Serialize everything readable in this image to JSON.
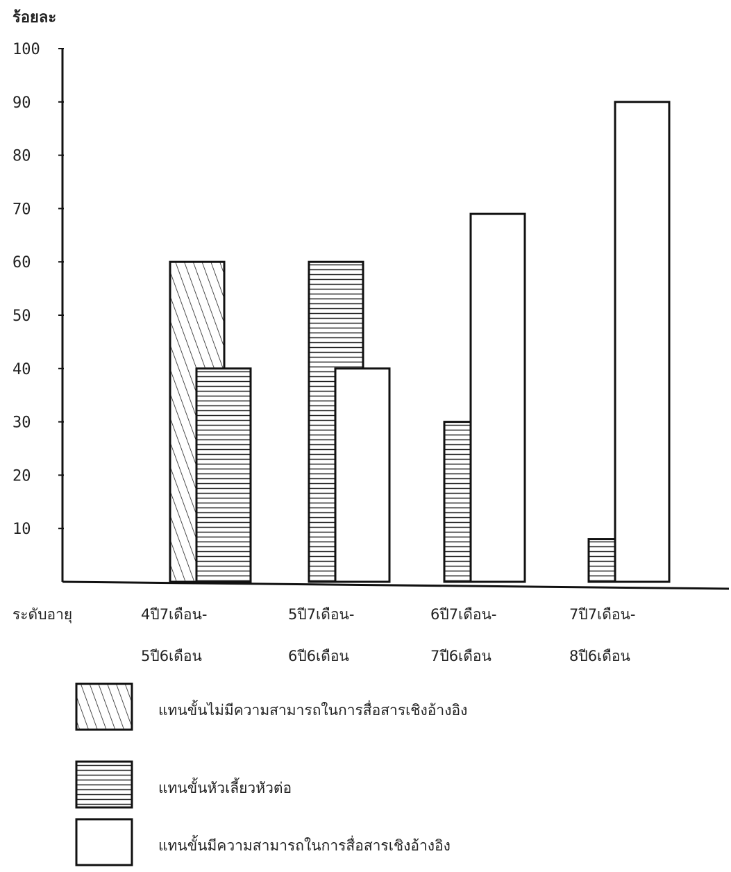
{
  "chart_data": {
    "type": "bar",
    "title": "",
    "ylabel": "ร้อยละ",
    "xlabel": "ระดับอายุ",
    "ylim": [
      0,
      100
    ],
    "yticks": [
      "10",
      "20",
      "30",
      "40",
      "50",
      "60",
      "70",
      "80",
      "90",
      "100"
    ],
    "categories": [
      {
        "line1": "4ปี7เดือน-",
        "line2": "5ปี6เดือน"
      },
      {
        "line1": "5ปี7เดือน-",
        "line2": "6ปี6เดือน"
      },
      {
        "line1": "6ปี7เดือน-",
        "line2": "7ปี6เดือน"
      },
      {
        "line1": "7ปี7เดือน-",
        "line2": "8ปี6เดือน"
      }
    ],
    "series": [
      {
        "name": "แทนขั้นไม่มีความสามารถในการสื่อสารเชิงอ้างอิง",
        "pattern": "diagonal",
        "values": [
          60,
          0,
          0,
          0
        ]
      },
      {
        "name": "แทนขั้นหัวเลี้ยวหัวต่อ",
        "pattern": "horizontal",
        "values": [
          40,
          60,
          30,
          8
        ]
      },
      {
        "name": "แทนขั้นมีความสามารถในการสื่อสารเชิงอ้างอิง",
        "pattern": "empty",
        "values": [
          0,
          40,
          69,
          90
        ]
      }
    ],
    "grid": false,
    "legend_position": "bottom"
  }
}
